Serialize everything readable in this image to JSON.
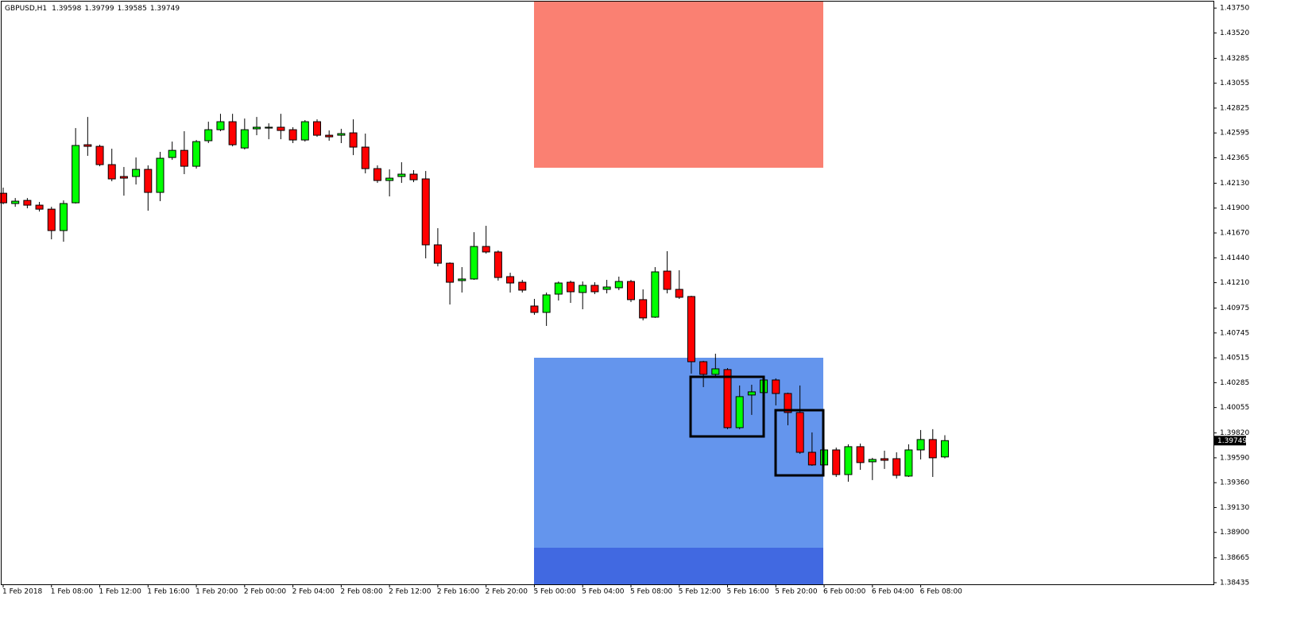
{
  "chart_data": {
    "type": "candlestick",
    "symbol": "GBPUSD,H1",
    "up_color": "#00ff00",
    "down_color": "#ff0000",
    "wick_color": "#000000",
    "categories": [
      "1 Feb 2018",
      null,
      null,
      null,
      "1 Feb 08:00",
      null,
      null,
      null,
      "1 Feb 12:00",
      null,
      null,
      null,
      "1 Feb 16:00",
      null,
      null,
      null,
      "1 Feb 20:00",
      null,
      null,
      null,
      "2 Feb 00:00",
      null,
      null,
      null,
      "2 Feb 04:00",
      null,
      null,
      null,
      "2 Feb 08:00",
      null,
      null,
      null,
      "2 Feb 12:00",
      null,
      null,
      null,
      "2 Feb 16:00",
      null,
      null,
      null,
      "2 Feb 20:00",
      null,
      null,
      null,
      "5 Feb 00:00",
      null,
      null,
      null,
      "5 Feb 04:00",
      null,
      null,
      null,
      "5 Feb 08:00",
      null,
      null,
      null,
      "5 Feb 12:00",
      null,
      null,
      null,
      "5 Feb 16:00",
      null,
      null,
      null,
      "5 Feb 20:00",
      null,
      null,
      null,
      "6 Feb 00:00",
      null,
      null,
      null,
      "6 Feb 04:00",
      null,
      null,
      null,
      "6 Feb 08:00",
      null,
      null
    ],
    "open": [
      1.42037,
      1.41942,
      1.41971,
      1.41927,
      1.4189,
      1.41692,
      1.41949,
      1.42486,
      1.42471,
      1.42302,
      1.42192,
      1.42192,
      1.42258,
      1.42045,
      1.42368,
      1.42434,
      1.42287,
      1.42523,
      1.42625,
      1.42699,
      1.42456,
      1.42633,
      1.4264,
      1.42648,
      1.42625,
      1.4253,
      1.42699,
      1.42574,
      1.42574,
      1.42596,
      1.42464,
      1.42265,
      1.42155,
      1.42192,
      1.42214,
      1.4217,
      1.4156,
      1.4139,
      1.41229,
      1.41244,
      1.41545,
      1.41494,
      1.41266,
      1.41214,
      1.40994,
      1.40935,
      1.41104,
      1.41214,
      1.41119,
      1.41185,
      1.41148,
      1.41163,
      1.41221,
      1.41053,
      1.40891,
      1.41317,
      1.41148,
      1.41082,
      1.40479,
      1.40362,
      1.40406,
      1.39869,
      1.40171,
      1.40193,
      1.4031,
      1.40185,
      1.40009,
      1.39641,
      1.39524,
      1.39663,
      1.39435,
      1.39693,
      1.39553,
      1.39582,
      1.39582,
      1.39421,
      1.39663,
      1.39759,
      1.39598
    ],
    "high": [
      1.42089,
      1.41993,
      1.41993,
      1.41957,
      1.41912,
      1.41971,
      1.4264,
      1.42743,
      1.42486,
      1.42449,
      1.4228,
      1.42368,
      1.42295,
      1.4242,
      1.42515,
      1.42611,
      1.4253,
      1.42699,
      1.42772,
      1.42772,
      1.42728,
      1.42743,
      1.42684,
      1.42772,
      1.42648,
      1.42714,
      1.42721,
      1.42618,
      1.42633,
      1.42721,
      1.42589,
      1.42295,
      1.42258,
      1.42324,
      1.42251,
      1.42243,
      1.41714,
      1.41398,
      1.41354,
      1.41677,
      1.41736,
      1.41508,
      1.41302,
      1.41236,
      1.4106,
      1.41119,
      1.41221,
      1.41229,
      1.41221,
      1.41214,
      1.41236,
      1.41266,
      1.41236,
      1.41148,
      1.41354,
      1.41501,
      1.41325,
      1.41089,
      1.40487,
      1.40553,
      1.4042,
      1.40259,
      1.40266,
      1.40332,
      1.40325,
      1.40193,
      1.40259,
      1.39825,
      1.39685,
      1.39685,
      1.39715,
      1.39722,
      1.3959,
      1.39656,
      1.39641,
      1.39715,
      1.39847,
      1.39855,
      1.39799
    ],
    "low": [
      1.41935,
      1.41912,
      1.41898,
      1.41868,
      1.41611,
      1.41589,
      1.41942,
      1.42383,
      1.42287,
      1.42148,
      1.42015,
      1.42118,
      1.41876,
      1.41964,
      1.42346,
      1.42214,
      1.42265,
      1.42501,
      1.42611,
      1.42471,
      1.42442,
      1.42574,
      1.42537,
      1.42537,
      1.42501,
      1.42515,
      1.42559,
      1.42523,
      1.42501,
      1.4239,
      1.42221,
      1.42133,
      1.42008,
      1.42133,
      1.4214,
      1.41435,
      1.41361,
      1.41008,
      1.41119,
      1.41236,
      1.41479,
      1.41229,
      1.41119,
      1.41119,
      1.40913,
      1.4081,
      1.41045,
      1.41023,
      1.40964,
      1.41104,
      1.41111,
      1.41141,
      1.41031,
      1.40861,
      1.40884,
      1.41111,
      1.4106,
      1.40369,
      1.40244,
      1.40347,
      1.39855,
      1.39855,
      1.39987,
      1.40163,
      1.40075,
      1.39891,
      1.39627,
      1.39516,
      1.39509,
      1.39413,
      1.39369,
      1.39479,
      1.39384,
      1.39487,
      1.39399,
      1.39413,
      1.39575,
      1.39413,
      1.39585
    ],
    "close": [
      1.41949,
      1.41964,
      1.41927,
      1.4189,
      1.41692,
      1.41942,
      1.42479,
      1.42471,
      1.42302,
      1.4217,
      1.42177,
      1.42258,
      1.42045,
      1.42361,
      1.42434,
      1.42287,
      1.42515,
      1.42625,
      1.42699,
      1.42486,
      1.42625,
      1.42648,
      1.42648,
      1.42618,
      1.4253,
      1.42699,
      1.42574,
      1.42559,
      1.42589,
      1.42464,
      1.42265,
      1.42155,
      1.42177,
      1.42214,
      1.42162,
      1.4156,
      1.4139,
      1.41214,
      1.41244,
      1.41545,
      1.41494,
      1.41258,
      1.41207,
      1.41141,
      1.40935,
      1.41097,
      1.41207,
      1.41126,
      1.41185,
      1.41126,
      1.4117,
      1.41221,
      1.41053,
      1.40884,
      1.4131,
      1.41148,
      1.41075,
      1.40479,
      1.40362,
      1.40413,
      1.39869,
      1.40156,
      1.402,
      1.4031,
      1.40185,
      1.40009,
      1.39641,
      1.39524,
      1.39663,
      1.39435,
      1.39693,
      1.39546,
      1.39575,
      1.39567,
      1.39428,
      1.39663,
      1.39759,
      1.3959,
      1.39749
    ],
    "ylim": [
      1.3842,
      1.4381
    ],
    "yticks": [
      {
        "value": 1.4375,
        "label": "1.43750"
      },
      {
        "value": 1.4352,
        "label": "1.43520"
      },
      1.43285,
      1.43055,
      1.42825,
      1.42595,
      1.42365,
      {
        "value": 1.4213,
        "label": "1.42130"
      },
      {
        "value": 1.419,
        "label": "1.41900"
      },
      {
        "value": 1.4167,
        "label": "1.41670"
      },
      {
        "value": 1.4144,
        "label": "1.41440"
      },
      {
        "value": 1.4121,
        "label": "1.41210"
      },
      1.40975,
      1.40745,
      1.40515,
      1.40285,
      1.40055,
      {
        "value": 1.3982,
        "label": "1.39820"
      },
      {
        "value": 1.3959,
        "label": "1.39590"
      },
      {
        "value": 1.3936,
        "label": "1.39360"
      },
      {
        "value": 1.3913,
        "label": "1.39130"
      },
      {
        "value": 1.389,
        "label": "1.38900"
      },
      1.38665,
      1.38435
    ]
  }
}
